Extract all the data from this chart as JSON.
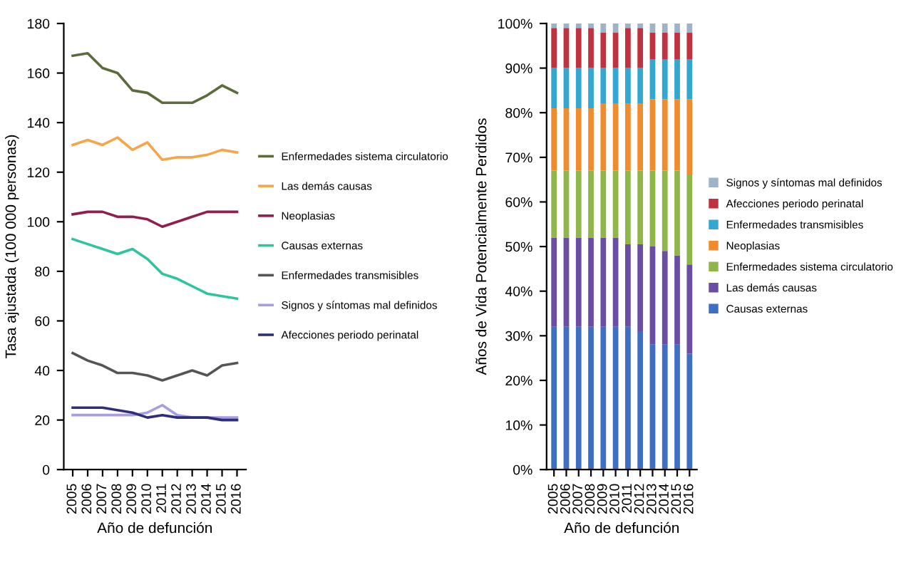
{
  "chart_data": [
    {
      "type": "line",
      "xlabel": "Año de defunción",
      "ylabel": "Tasa ajustada (100 000 personas)",
      "categories": [
        "2005",
        "2006",
        "2007",
        "2008",
        "2009",
        "2010",
        "2011",
        "2012",
        "2013",
        "2014",
        "2015",
        "2016"
      ],
      "ylim": [
        0,
        180
      ],
      "yticks": [
        0,
        20,
        40,
        60,
        80,
        100,
        120,
        140,
        160,
        180
      ],
      "grid": false,
      "legend": "right",
      "marker": "none",
      "line_style": "solid",
      "series": [
        {
          "name": "Enfermedades sistema circulatorio",
          "color": "#5b6b3c",
          "values": [
            167,
            168,
            162,
            160,
            153,
            152,
            148,
            148,
            148,
            151,
            155,
            152
          ]
        },
        {
          "name": "Las demás causas",
          "color": "#f5a54a",
          "values": [
            131,
            133,
            131,
            134,
            129,
            132,
            125,
            126,
            126,
            127,
            129,
            128
          ]
        },
        {
          "name": "Neoplasias",
          "color": "#8e1f4f",
          "values": [
            103,
            104,
            104,
            102,
            102,
            101,
            98,
            100,
            102,
            104,
            104,
            104
          ]
        },
        {
          "name": "Causas externas",
          "color": "#2ec49e",
          "values": [
            93,
            91,
            89,
            87,
            89,
            85,
            79,
            77,
            74,
            71,
            70,
            69
          ]
        },
        {
          "name": "Enfermedades transmisibles",
          "color": "#555555",
          "values": [
            47,
            44,
            42,
            39,
            39,
            38,
            36,
            38,
            40,
            38,
            42,
            43
          ]
        },
        {
          "name": "Signos y síntomas mal definidos",
          "color": "#a79ce6",
          "values": [
            22,
            22,
            22,
            22,
            22,
            23,
            26,
            22,
            21,
            21,
            21,
            21
          ]
        },
        {
          "name": "Afecciones periodo perinatal",
          "color": "#2e2e7a",
          "values": [
            25,
            25,
            25,
            24,
            23,
            21,
            22,
            21,
            21,
            21,
            20,
            20
          ]
        }
      ]
    },
    {
      "type": "bar",
      "stacked": true,
      "xlabel": "Año de defunción",
      "ylabel": "Años de Vida Potencialmente Perdidos",
      "categories": [
        "2005",
        "2006",
        "2007",
        "2008",
        "2009",
        "2010",
        "2011",
        "2012",
        "2013",
        "2014",
        "2015",
        "2016"
      ],
      "ylim": [
        0,
        100
      ],
      "yticks": [
        {
          "value": 0,
          "label": "0%"
        },
        {
          "value": 10,
          "label": "10%"
        },
        {
          "value": 20,
          "label": "20%"
        },
        {
          "value": 30,
          "label": "30%"
        },
        {
          "value": 40,
          "label": "40%"
        },
        {
          "value": 50,
          "label": "50%"
        },
        {
          "value": 60,
          "label": "60%"
        },
        {
          "value": 70,
          "label": "70%"
        },
        {
          "value": 80,
          "label": "80%"
        },
        {
          "value": 90,
          "label": "90%"
        },
        {
          "value": 100,
          "label": "100%"
        }
      ],
      "grid": false,
      "legend": "right",
      "series": [
        {
          "name": "Causas externas",
          "color": "#3f6fc2",
          "values": [
            32,
            32,
            32,
            32,
            32,
            32,
            32,
            31,
            28,
            28,
            28,
            26
          ]
        },
        {
          "name": "Las demás causas",
          "color": "#6a4ea3",
          "values": [
            20,
            20,
            20,
            20,
            20,
            20,
            18.5,
            19.5,
            22,
            21,
            20,
            20
          ]
        },
        {
          "name": "Enfermedades sistema circulatorio",
          "color": "#8fb64a",
          "values": [
            15,
            15,
            15,
            15,
            15,
            15,
            16.5,
            16.5,
            17,
            18,
            19,
            20
          ]
        },
        {
          "name": "Neoplasias",
          "color": "#f08c2e",
          "values": [
            14,
            14,
            14,
            14,
            15,
            15,
            15,
            15,
            16,
            16,
            16,
            17
          ]
        },
        {
          "name": "Enfermedades transmisibles",
          "color": "#33a7cf",
          "values": [
            9,
            9,
            9,
            9,
            8,
            8,
            8,
            8,
            9,
            9,
            9,
            9
          ]
        },
        {
          "name": "Afecciones periodo perinatal",
          "color": "#c0323f",
          "values": [
            9,
            9,
            9,
            9,
            8,
            8,
            9,
            9,
            6,
            6,
            6,
            6
          ]
        },
        {
          "name": "Signos y síntomas mal definidos",
          "color": "#9fb3c8",
          "values": [
            1,
            1,
            1,
            1,
            2,
            2,
            1,
            1,
            2,
            2,
            2,
            2
          ]
        }
      ]
    }
  ]
}
